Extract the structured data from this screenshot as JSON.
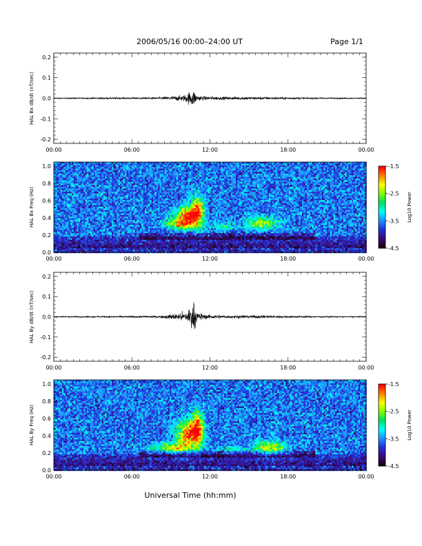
{
  "header": {
    "title": "2006/05/16  00:00–24:00 UT",
    "page": "Page 1/1"
  },
  "colors": {
    "trace": "#000000",
    "colormap": [
      "#1a0010",
      "#3b0a78",
      "#1f2fd8",
      "#1e90ff",
      "#00ffff",
      "#00e060",
      "#7cff00",
      "#ffff00",
      "#ff8000",
      "#ff0000"
    ]
  },
  "chart_data": [
    {
      "type": "line",
      "ylabel": "HAL Bx dB/dt (nT/sec)",
      "x_range_hours": [
        0,
        24
      ],
      "ylim": [
        -0.22,
        0.22
      ],
      "y_ticks": [
        -0.2,
        -0.1,
        0.0,
        0.1,
        0.2
      ],
      "y_tick_labels": [
        "-0.2",
        "-0.1",
        "0.0",
        "0.1",
        "0.2"
      ],
      "x_ticks": [
        "00:00",
        "06:00",
        "12:00",
        "18:00",
        "00:00"
      ],
      "envelope": {
        "x": [
          0,
          4,
          8,
          9,
          10,
          10.4,
          10.7,
          11,
          11.5,
          13,
          15,
          17,
          20,
          24
        ],
        "amplitude": [
          0.002,
          0.003,
          0.004,
          0.008,
          0.012,
          0.025,
          0.035,
          0.012,
          0.008,
          0.006,
          0.006,
          0.005,
          0.003,
          0.002
        ]
      }
    },
    {
      "type": "heatmap",
      "ylabel": "HAL Bx Freq (Hz)",
      "x_range_hours": [
        0,
        24
      ],
      "ylim": [
        0,
        1.05
      ],
      "y_ticks": [
        0.0,
        0.2,
        0.4,
        0.6,
        0.8,
        1.0
      ],
      "y_tick_labels": [
        "0.0",
        "0.2",
        "0.4",
        "0.6",
        "0.8",
        "1.0"
      ],
      "x_ticks": [
        "00:00",
        "06:00",
        "12:00",
        "18:00",
        "00:00"
      ],
      "colorbar": {
        "label": "Log10 Power",
        "range": [
          -4.5,
          -1.5
        ],
        "tick_labels": [
          "-1.5",
          "-2.5",
          "-3.5",
          "-4.5"
        ]
      },
      "blobs": [
        {
          "t": 10.2,
          "f": 0.42,
          "dt": 0.9,
          "df": 0.12,
          "v": -1.6
        },
        {
          "t": 11.0,
          "f": 0.5,
          "dt": 0.5,
          "df": 0.16,
          "v": -2.0
        },
        {
          "t": 9.4,
          "f": 0.34,
          "dt": 1.2,
          "df": 0.05,
          "v": -2.6
        },
        {
          "t": 13.0,
          "f": 0.32,
          "dt": 1.2,
          "df": 0.05,
          "v": -3.1
        },
        {
          "t": 16.0,
          "f": 0.35,
          "dt": 1.2,
          "df": 0.07,
          "v": -2.4
        }
      ]
    },
    {
      "type": "line",
      "ylabel": "HAL By dB/dt (nT/sec)",
      "x_range_hours": [
        0,
        24
      ],
      "ylim": [
        -0.22,
        0.22
      ],
      "y_ticks": [
        -0.2,
        -0.1,
        0.0,
        0.1,
        0.2
      ],
      "y_tick_labels": [
        "-0.2",
        "-0.1",
        "0.0",
        "0.1",
        "0.2"
      ],
      "x_ticks": [
        "00:00",
        "06:00",
        "12:00",
        "18:00",
        "00:00"
      ],
      "envelope": {
        "x": [
          0,
          4,
          8,
          9,
          10,
          10.4,
          10.7,
          11,
          11.5,
          13,
          15,
          17,
          20,
          24
        ],
        "amplitude": [
          0.002,
          0.003,
          0.004,
          0.01,
          0.018,
          0.035,
          0.06,
          0.02,
          0.01,
          0.006,
          0.006,
          0.005,
          0.003,
          0.002
        ]
      }
    },
    {
      "type": "heatmap",
      "ylabel": "HAL By Freq (Hz)",
      "x_range_hours": [
        0,
        24
      ],
      "ylim": [
        0,
        1.05
      ],
      "y_ticks": [
        0.0,
        0.2,
        0.4,
        0.6,
        0.8,
        1.0
      ],
      "y_tick_labels": [
        "0.0",
        "0.2",
        "0.4",
        "0.6",
        "0.8",
        "1.0"
      ],
      "x_ticks": [
        "00:00",
        "06:00",
        "12:00",
        "18:00",
        "00:00"
      ],
      "colorbar": {
        "label": "Log10 Power",
        "range": [
          -4.5,
          -1.5
        ],
        "tick_labels": [
          "-1.5",
          "-2.5",
          "-3.5",
          "-4.5"
        ]
      },
      "blobs": [
        {
          "t": 10.3,
          "f": 0.42,
          "dt": 0.9,
          "df": 0.16,
          "v": -1.6
        },
        {
          "t": 11.0,
          "f": 0.52,
          "dt": 0.4,
          "df": 0.18,
          "v": -2.0
        },
        {
          "t": 9.0,
          "f": 0.27,
          "dt": 1.4,
          "df": 0.06,
          "v": -2.4
        },
        {
          "t": 13.5,
          "f": 0.25,
          "dt": 1.3,
          "df": 0.04,
          "v": -3.1
        },
        {
          "t": 16.5,
          "f": 0.27,
          "dt": 1.2,
          "df": 0.08,
          "v": -2.3
        }
      ]
    }
  ],
  "footer": {
    "xlabel": "Universal Time (hh:mm)"
  }
}
